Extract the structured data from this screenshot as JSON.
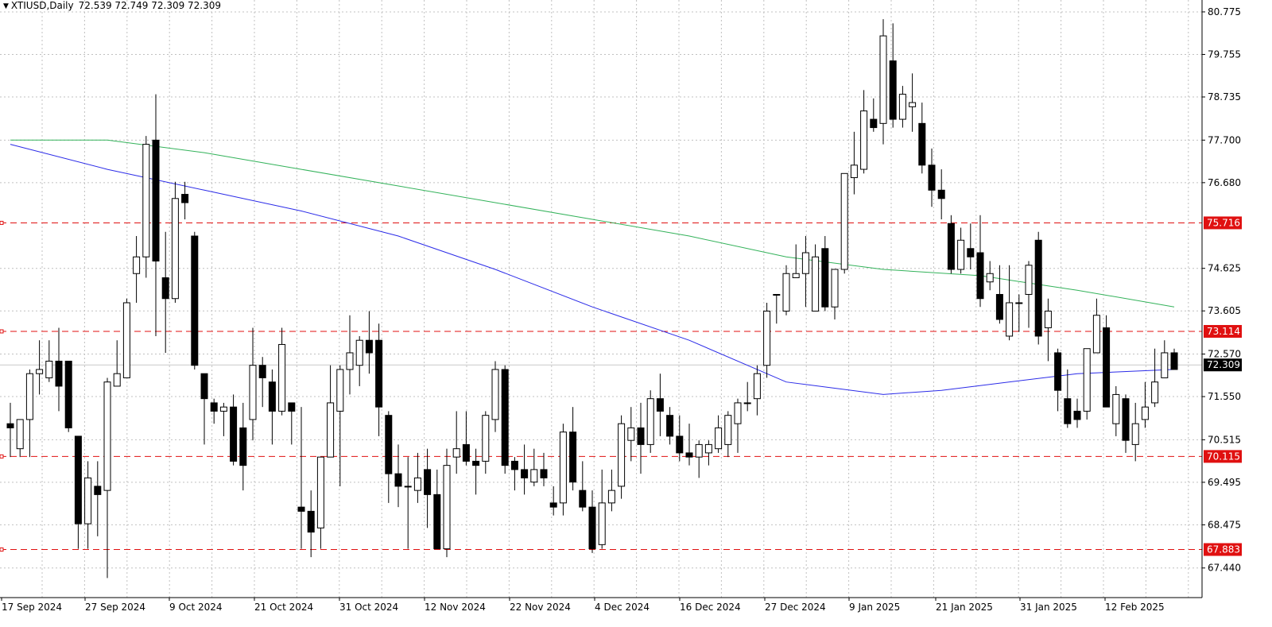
{
  "header": {
    "symbol": "XTIUSD,Daily",
    "ohlc": "72.539 72.749 72.309 72.309",
    "menu_icon": "triangle-down-icon"
  },
  "chart_data": {
    "type": "candlestick",
    "symbol": "XTIUSD",
    "timeframe": "Daily",
    "y_ticks": [
      "80.775",
      "79.755",
      "78.735",
      "77.700",
      "76.680",
      "74.625",
      "73.605",
      "72.570",
      "71.550",
      "70.515",
      "69.495",
      "68.475",
      "67.440"
    ],
    "x_ticks": [
      "17 Sep 2024",
      "27 Sep 2024",
      "9 Oct 2024",
      "21 Oct 2024",
      "31 Oct 2024",
      "12 Nov 2024",
      "22 Nov 2024",
      "4 Dec 2024",
      "16 Dec 2024",
      "27 Dec 2024",
      "9 Jan 2025",
      "21 Jan 2025",
      "31 Jan 2025",
      "12 Feb 2025"
    ],
    "ylim": [
      66.73,
      81.06
    ],
    "grid": true,
    "current_price": {
      "value": 72.309,
      "label": "72.309"
    },
    "hlines": [
      {
        "value": 75.716,
        "label": "75.716"
      },
      {
        "value": 73.114,
        "label": "73.114"
      },
      {
        "value": 70.115,
        "label": "70.115"
      },
      {
        "value": 67.883,
        "label": "67.883"
      }
    ],
    "candles": [
      [
        70.9,
        70.8,
        70.1,
        71.4
      ],
      [
        70.3,
        71.0,
        70.1,
        71.0
      ],
      [
        71.0,
        72.1,
        70.1,
        72.2
      ],
      [
        72.1,
        72.2,
        71.6,
        72.9
      ],
      [
        72.0,
        72.4,
        71.9,
        72.9
      ],
      [
        72.4,
        71.8,
        71.2,
        73.2
      ],
      [
        72.4,
        70.8,
        70.7,
        72.4
      ],
      [
        70.6,
        68.5,
        67.9,
        70.6
      ],
      [
        68.5,
        69.6,
        67.9,
        70.0
      ],
      [
        69.4,
        69.2,
        68.2,
        70.0
      ],
      [
        69.3,
        71.9,
        67.2,
        72.0
      ],
      [
        71.8,
        72.1,
        71.8,
        72.9
      ],
      [
        72.0,
        73.8,
        72.0,
        73.9
      ],
      [
        74.5,
        74.9,
        73.8,
        75.4
      ],
      [
        74.9,
        77.6,
        74.4,
        77.8
      ],
      [
        77.7,
        74.8,
        73.0,
        78.8
      ],
      [
        74.4,
        73.9,
        72.6,
        75.5
      ],
      [
        73.9,
        76.3,
        73.8,
        76.7
      ],
      [
        76.4,
        76.2,
        75.8,
        76.7
      ],
      [
        75.4,
        72.3,
        72.2,
        75.5
      ],
      [
        72.1,
        71.5,
        70.4,
        72.1
      ],
      [
        71.4,
        71.2,
        70.9,
        71.5
      ],
      [
        71.2,
        71.3,
        70.6,
        71.4
      ],
      [
        71.3,
        70.0,
        69.9,
        71.6
      ],
      [
        70.8,
        69.9,
        69.3,
        71.4
      ],
      [
        71.0,
        72.3,
        70.5,
        73.2
      ],
      [
        72.3,
        72.0,
        71.3,
        72.5
      ],
      [
        71.9,
        71.2,
        70.4,
        72.2
      ],
      [
        71.2,
        72.8,
        71.1,
        73.2
      ],
      [
        71.4,
        71.2,
        70.4,
        71.4
      ],
      [
        68.9,
        68.8,
        67.9,
        71.3
      ],
      [
        68.8,
        68.3,
        67.7,
        69.3
      ],
      [
        68.4,
        70.1,
        67.9,
        70.1
      ],
      [
        70.1,
        71.4,
        70.1,
        72.3
      ],
      [
        71.2,
        72.2,
        69.4,
        72.3
      ],
      [
        72.2,
        72.6,
        71.6,
        73.5
      ],
      [
        72.3,
        72.9,
        71.8,
        73.0
      ],
      [
        72.9,
        72.6,
        72.1,
        73.6
      ],
      [
        72.9,
        71.3,
        70.6,
        73.3
      ],
      [
        71.1,
        69.7,
        69.0,
        71.2
      ],
      [
        69.7,
        69.4,
        68.9,
        70.4
      ],
      [
        69.4,
        69.4,
        67.9,
        70.1
      ],
      [
        69.3,
        69.6,
        69.0,
        70.2
      ],
      [
        69.8,
        69.2,
        68.4,
        70.3
      ],
      [
        69.2,
        67.9,
        67.9,
        69.8
      ],
      [
        67.9,
        69.9,
        67.7,
        70.3
      ],
      [
        70.1,
        70.3,
        69.7,
        71.2
      ],
      [
        70.4,
        70.0,
        69.9,
        71.2
      ],
      [
        70.0,
        69.9,
        69.2,
        70.3
      ],
      [
        70.0,
        71.1,
        69.7,
        71.2
      ],
      [
        71.0,
        72.2,
        70.7,
        72.4
      ],
      [
        72.2,
        69.9,
        69.7,
        72.3
      ],
      [
        70.0,
        69.8,
        69.3,
        70.1
      ],
      [
        69.8,
        69.6,
        69.2,
        70.4
      ],
      [
        69.5,
        69.8,
        69.4,
        70.3
      ],
      [
        69.8,
        69.6,
        69.4,
        70.2
      ],
      [
        69.0,
        68.9,
        68.7,
        69.4
      ],
      [
        69.0,
        70.7,
        68.7,
        70.9
      ],
      [
        70.7,
        69.5,
        69.3,
        71.3
      ],
      [
        69.3,
        68.9,
        68.8,
        70.0
      ],
      [
        68.9,
        67.9,
        67.8,
        69.3
      ],
      [
        68.0,
        69.0,
        67.9,
        69.8
      ],
      [
        69.0,
        69.3,
        68.8,
        69.8
      ],
      [
        69.4,
        70.9,
        69.1,
        71.1
      ],
      [
        70.5,
        70.8,
        70.0,
        71.3
      ],
      [
        70.8,
        70.4,
        69.7,
        71.4
      ],
      [
        70.4,
        71.5,
        70.2,
        71.7
      ],
      [
        71.5,
        71.2,
        70.6,
        72.1
      ],
      [
        71.1,
        70.6,
        70.4,
        71.3
      ],
      [
        70.6,
        70.2,
        70.0,
        71.1
      ],
      [
        70.2,
        70.1,
        69.9,
        70.9
      ],
      [
        70.1,
        70.4,
        69.6,
        70.5
      ],
      [
        70.2,
        70.4,
        69.9,
        70.5
      ],
      [
        70.3,
        70.8,
        70.2,
        71.1
      ],
      [
        70.4,
        71.1,
        70.1,
        71.2
      ],
      [
        70.9,
        71.4,
        70.2,
        71.5
      ],
      [
        71.4,
        71.4,
        71.2,
        71.9
      ],
      [
        71.5,
        72.1,
        71.1,
        72.3
      ],
      [
        72.3,
        73.6,
        72.0,
        73.8
      ],
      [
        74.0,
        74.0,
        73.3,
        74.0
      ],
      [
        73.6,
        74.5,
        73.5,
        74.7
      ],
      [
        74.4,
        74.5,
        74.4,
        75.2
      ],
      [
        74.5,
        75.0,
        73.7,
        75.4
      ],
      [
        73.6,
        74.9,
        73.6,
        75.2
      ],
      [
        75.1,
        73.7,
        73.6,
        75.4
      ],
      [
        73.7,
        74.6,
        73.4,
        74.6
      ],
      [
        74.6,
        76.9,
        74.5,
        76.9
      ],
      [
        76.8,
        77.1,
        76.4,
        77.9
      ],
      [
        77.0,
        78.4,
        76.9,
        78.9
      ],
      [
        78.2,
        78.0,
        77.9,
        78.7
      ],
      [
        78.1,
        80.2,
        77.6,
        80.6
      ],
      [
        79.6,
        78.2,
        78.0,
        80.5
      ],
      [
        78.2,
        78.8,
        78.0,
        79.0
      ],
      [
        78.5,
        78.6,
        77.9,
        79.3
      ],
      [
        78.1,
        77.1,
        76.9,
        78.6
      ],
      [
        77.1,
        76.5,
        76.1,
        77.5
      ],
      [
        76.5,
        76.3,
        75.8,
        77.0
      ],
      [
        75.7,
        74.6,
        74.5,
        75.9
      ],
      [
        74.6,
        75.3,
        74.5,
        75.6
      ],
      [
        75.1,
        74.9,
        74.6,
        75.7
      ],
      [
        75.0,
        73.9,
        73.7,
        75.9
      ],
      [
        74.3,
        74.5,
        74.1,
        74.8
      ],
      [
        74.0,
        73.4,
        73.3,
        74.7
      ],
      [
        73.0,
        73.8,
        72.9,
        74.7
      ],
      [
        73.8,
        73.8,
        73.1,
        74.0
      ],
      [
        74.0,
        74.7,
        73.2,
        74.8
      ],
      [
        75.3,
        73.0,
        72.8,
        75.5
      ],
      [
        73.2,
        73.6,
        72.4,
        73.9
      ],
      [
        72.6,
        71.7,
        71.2,
        72.7
      ],
      [
        71.5,
        70.9,
        70.8,
        72.2
      ],
      [
        71.2,
        71.0,
        70.8,
        71.5
      ],
      [
        71.2,
        72.7,
        71.0,
        72.7
      ],
      [
        72.6,
        73.5,
        72.6,
        73.9
      ],
      [
        73.2,
        71.3,
        71.3,
        73.5
      ],
      [
        70.9,
        71.6,
        70.6,
        71.8
      ],
      [
        71.5,
        70.5,
        70.2,
        71.6
      ],
      [
        70.4,
        70.9,
        70.0,
        71.4
      ],
      [
        71.0,
        71.3,
        70.8,
        71.9
      ],
      [
        71.4,
        71.9,
        71.3,
        72.7
      ],
      [
        72.0,
        72.6,
        72.0,
        72.9
      ],
      [
        72.6,
        72.2,
        72.2,
        72.7
      ]
    ],
    "series": [
      {
        "name": "",
        "color": "#2b2be8",
        "values": [
          [
            0,
            77.6
          ],
          [
            10,
            77.0
          ],
          [
            20,
            76.5
          ],
          [
            30,
            76.0
          ],
          [
            40,
            75.4
          ],
          [
            50,
            74.6
          ],
          [
            60,
            73.7
          ],
          [
            70,
            72.9
          ],
          [
            80,
            71.9
          ],
          [
            90,
            71.6
          ],
          [
            96,
            71.7
          ],
          [
            110,
            72.1
          ],
          [
            120,
            72.2
          ]
        ]
      },
      {
        "name": "",
        "color": "#33b25a",
        "values": [
          [
            0,
            77.7
          ],
          [
            10,
            77.7
          ],
          [
            20,
            77.4
          ],
          [
            30,
            77.0
          ],
          [
            40,
            76.6
          ],
          [
            50,
            76.2
          ],
          [
            60,
            75.8
          ],
          [
            70,
            75.4
          ],
          [
            80,
            74.9
          ],
          [
            90,
            74.6
          ],
          [
            100,
            74.45
          ],
          [
            110,
            74.1
          ],
          [
            120,
            73.7
          ]
        ]
      }
    ],
    "colors": {
      "grid": "#c0c0c0",
      "hline": "#e01010",
      "label_bg": "#e01010",
      "price_bg": "#000000",
      "bull": "#ffffff",
      "bear": "#000000",
      "outline": "#000000"
    }
  }
}
